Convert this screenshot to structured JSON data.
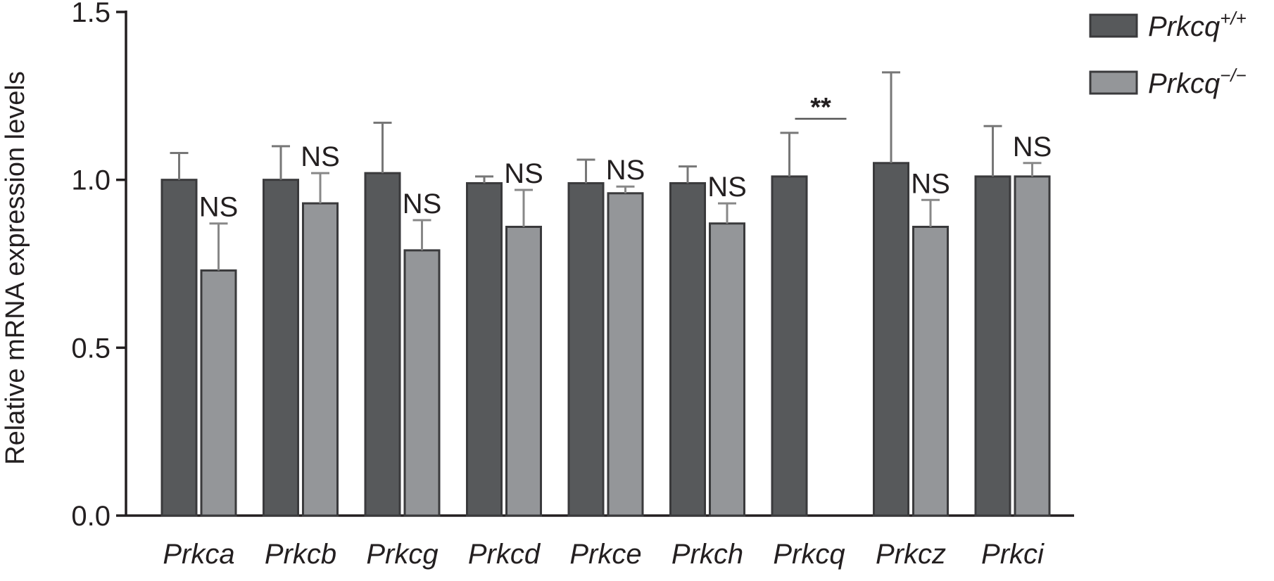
{
  "chart_data": {
    "type": "bar",
    "y_label": "Relative mRNA expression levels",
    "categories": [
      "Prkca",
      "Prkcb",
      "Prkcg",
      "Prkcd",
      "Prkce",
      "Prkch",
      "Prkcq",
      "Prkcz",
      "Prkci"
    ],
    "series": [
      {
        "name": "Prkcq+/+",
        "color": "#57595b",
        "values": [
          1.0,
          1.0,
          1.02,
          0.99,
          0.99,
          0.99,
          1.01,
          1.05,
          1.01
        ],
        "errors": [
          0.08,
          0.1,
          0.15,
          0.02,
          0.07,
          0.05,
          0.13,
          0.27,
          0.15
        ]
      },
      {
        "name": "Prkcq−/−",
        "color": "#949699",
        "values": [
          0.73,
          0.93,
          0.79,
          0.86,
          0.96,
          0.87,
          0,
          0.86,
          1.01
        ],
        "errors": [
          0.14,
          0.09,
          0.09,
          0.11,
          0.02,
          0.06,
          null,
          0.08,
          0.04
        ]
      }
    ],
    "annotations": [
      "NS",
      "NS",
      "NS",
      "NS",
      "NS",
      "NS",
      "**",
      "NS",
      "NS"
    ],
    "ylim": [
      0,
      1.5
    ],
    "yticks": [
      {
        "value": 0,
        "label": "0.0"
      },
      {
        "value": 0.5,
        "label": "0.5"
      },
      {
        "value": 1,
        "label": "1.0"
      },
      {
        "value": 1.5,
        "label": "1.5"
      }
    ],
    "legend": "top-right"
  }
}
